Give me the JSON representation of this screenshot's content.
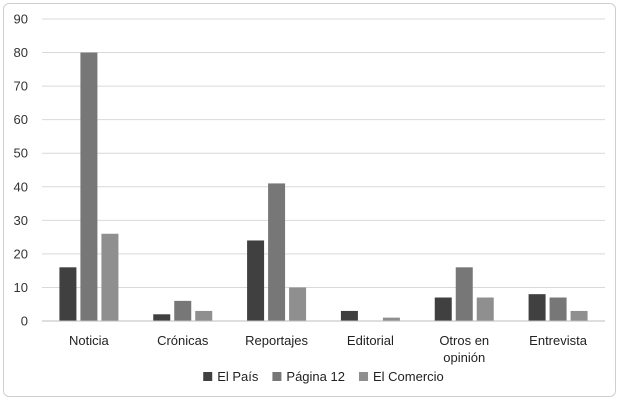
{
  "chart_data": {
    "type": "bar",
    "title": "",
    "xlabel": "",
    "ylabel": "",
    "ylim": [
      0,
      90
    ],
    "yticks": [
      0,
      10,
      20,
      30,
      40,
      50,
      60,
      70,
      80,
      90
    ],
    "grid": true,
    "legend_position": "bottom",
    "categories": [
      [
        "Noticia"
      ],
      [
        "Crónicas"
      ],
      [
        "Reportajes"
      ],
      [
        "Editorial"
      ],
      [
        "Otros en",
        "opinión"
      ],
      [
        "Entrevista"
      ]
    ],
    "series": [
      {
        "name": "El País",
        "color": "#404040",
        "values": [
          16,
          2,
          24,
          3,
          7,
          8
        ]
      },
      {
        "name": "Página 12",
        "color": "#777777",
        "values": [
          80,
          6,
          41,
          0,
          16,
          7
        ]
      },
      {
        "name": "El Comercio",
        "color": "#8f8f8f",
        "values": [
          26,
          3,
          10,
          1,
          7,
          3
        ]
      }
    ]
  }
}
